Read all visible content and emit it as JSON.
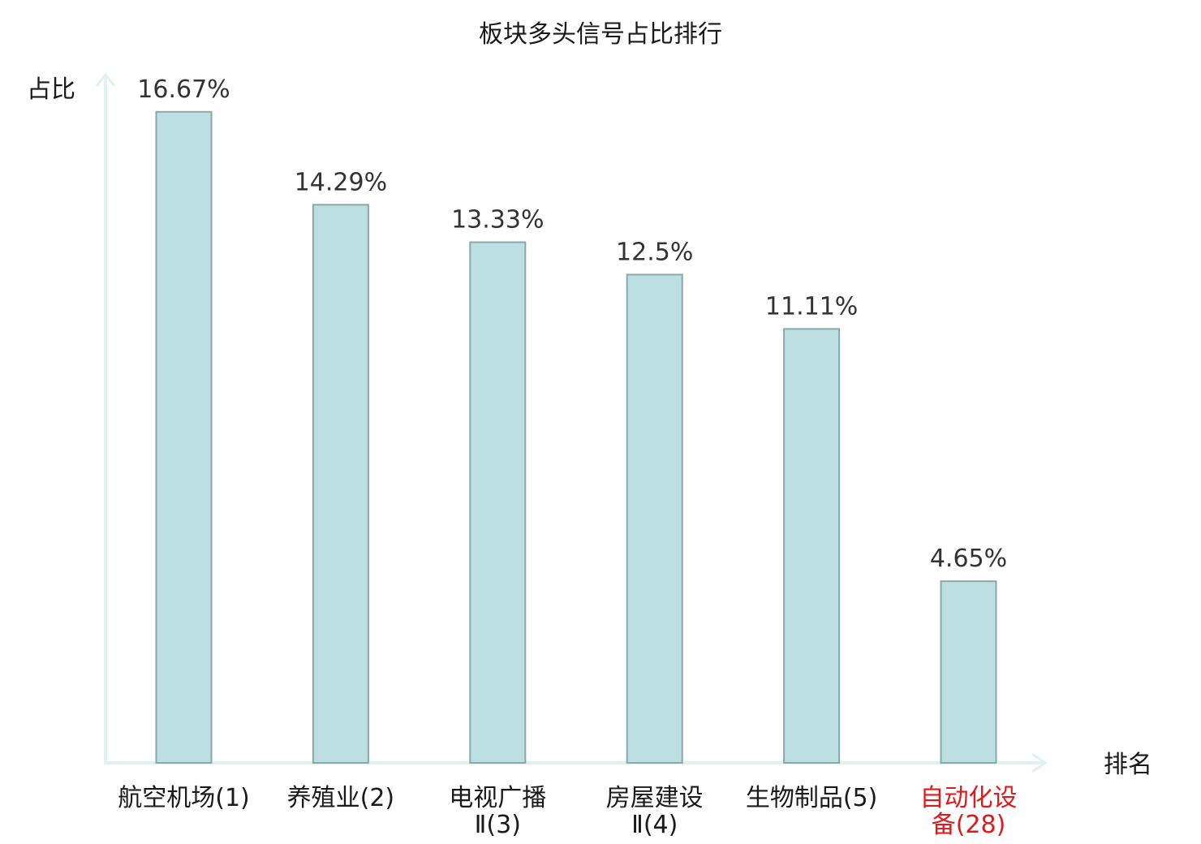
{
  "chart_data": {
    "type": "bar",
    "title": "板块多头信号占比排行",
    "ylabel": "占比",
    "xlabel": "排名",
    "ylim": [
      0,
      17.6
    ],
    "grid": false,
    "categories": [
      [
        "航空机场(1)"
      ],
      [
        "养殖业(2)"
      ],
      [
        "电视广播",
        "Ⅱ(3)"
      ],
      [
        "房屋建设",
        "Ⅱ(4)"
      ],
      [
        "生物制品(5)"
      ],
      [
        "自动化设",
        "备(28)"
      ]
    ],
    "values": [
      16.67,
      14.29,
      13.33,
      12.5,
      11.11,
      4.65
    ],
    "value_labels": [
      "16.67%",
      "14.29%",
      "13.33%",
      "12.5%",
      "11.11%",
      "4.65%"
    ],
    "highlight_index": 5
  },
  "colors": {
    "bar_fill": "#bce0e2",
    "bar_stroke": "#8aa8ab",
    "axis": "#dff2ef",
    "text": "#1a1a1a",
    "value_text": "#333333",
    "highlight": "#e0191b"
  }
}
